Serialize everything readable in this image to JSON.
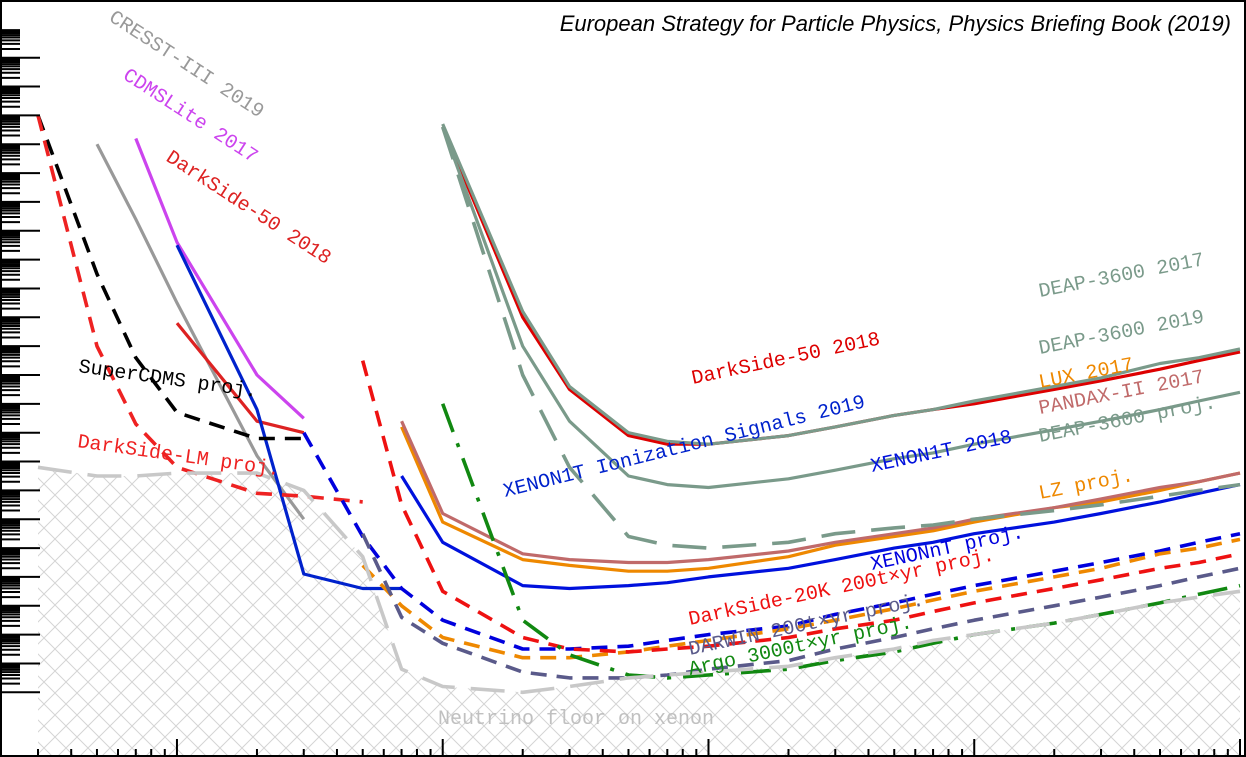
{
  "chart_data": {
    "type": "line",
    "title": "European Strategy for Particle Physics, Physics Briefing Book (2019)",
    "xlabel": "",
    "ylabel": "",
    "xscale": "log",
    "yscale": "log",
    "grid": false,
    "legend": "none (curves labelled inline)",
    "x": [
      0.3,
      0.5,
      0.7,
      1,
      2,
      3,
      5,
      7,
      10,
      20,
      30,
      50,
      70,
      100,
      200,
      300,
      500,
      700,
      1000,
      2000,
      3000,
      5000,
      7000,
      10000
    ],
    "shaded_region": {
      "name": "Neutrino floor on xenon",
      "color": "#c8c8c8",
      "pattern": "crosshatch"
    },
    "series": [
      {
        "name": "CRESST-III 2019",
        "color": "#999999",
        "style": "solid",
        "values": [
          null,
          41.0,
          38.4,
          35.5,
          30.2,
          28.0,
          null,
          null,
          null,
          null,
          null,
          null,
          null,
          null,
          null,
          null,
          null,
          null,
          null,
          null,
          null,
          null,
          null,
          null
        ]
      },
      {
        "name": "CDMSLite 2017",
        "color": "#cc44ee",
        "style": "solid",
        "values": [
          null,
          null,
          41.2,
          37.6,
          33.0,
          31.5,
          null,
          null,
          null,
          null,
          null,
          null,
          null,
          null,
          null,
          null,
          null,
          null,
          null,
          null,
          null,
          null,
          null,
          null
        ]
      },
      {
        "name": "DarkSide-50 2018",
        "color": "#dd2222",
        "style": "solid",
        "values": [
          null,
          null,
          null,
          34.8,
          31.4,
          31.0,
          null,
          null,
          null,
          null,
          null,
          null,
          null,
          null,
          null,
          null,
          null,
          null,
          null,
          null,
          null,
          null,
          null,
          null
        ]
      },
      {
        "name": "XENON1T Ionization Signals 2019",
        "color": "#0022cc",
        "style": "solid",
        "values": [
          null,
          null,
          null,
          37.5,
          31.8,
          26.1,
          25.6,
          25.6,
          null,
          null,
          null,
          null,
          null,
          null,
          null,
          null,
          null,
          null,
          null,
          null,
          null,
          null,
          null,
          null
        ]
      },
      {
        "name": "DarkSide-50 2018",
        "color": "#dd0000",
        "style": "solid",
        "values": [
          null,
          null,
          null,
          null,
          null,
          null,
          null,
          null,
          41.6,
          35.0,
          32.5,
          30.9,
          30.6,
          30.6,
          30.9,
          31.2,
          31.6,
          31.8,
          32.0,
          32.5,
          32.8,
          33.2,
          33.5,
          33.8
        ]
      },
      {
        "name": "DEAP-3600 2017",
        "color": "#7a9a8a",
        "style": "solid",
        "values": [
          null,
          null,
          null,
          null,
          null,
          null,
          null,
          null,
          41.7,
          35.2,
          32.6,
          31.0,
          30.7,
          30.6,
          30.9,
          31.2,
          31.6,
          31.8,
          32.1,
          32.6,
          32.9,
          33.4,
          33.6,
          33.9
        ]
      },
      {
        "name": "DEAP-3600 2019",
        "color": "#7a9a8a",
        "style": "solid",
        "values": [
          null,
          null,
          null,
          null,
          null,
          null,
          null,
          null,
          41.6,
          34.0,
          31.4,
          29.5,
          29.2,
          29.1,
          29.4,
          29.7,
          30.1,
          30.3,
          30.6,
          31.1,
          31.4,
          31.8,
          32.1,
          32.4
        ]
      },
      {
        "name": "LUX 2017",
        "color": "#ee8800",
        "style": "solid",
        "values": [
          null,
          null,
          null,
          null,
          null,
          null,
          null,
          31.2,
          27.9,
          26.6,
          26.4,
          26.2,
          26.2,
          26.3,
          26.7,
          27.1,
          27.4,
          27.6,
          27.9,
          28.4,
          28.6,
          29.0,
          29.3,
          29.6
        ]
      },
      {
        "name": "PANDAX-II 2017",
        "color": "#c06a6a",
        "style": "solid",
        "values": [
          null,
          null,
          null,
          null,
          null,
          null,
          null,
          31.4,
          28.2,
          26.8,
          26.6,
          26.5,
          26.5,
          26.6,
          26.9,
          27.2,
          27.5,
          27.7,
          28.0,
          28.4,
          28.7,
          29.1,
          29.3,
          29.6
        ]
      },
      {
        "name": "XENON1T 2018",
        "color": "#0011dd",
        "style": "solid",
        "values": [
          null,
          null,
          null,
          null,
          null,
          null,
          null,
          29.5,
          27.2,
          25.7,
          25.6,
          25.7,
          25.8,
          26.0,
          26.3,
          26.6,
          27.0,
          27.2,
          27.5,
          27.9,
          28.2,
          28.6,
          28.9,
          29.2
        ]
      },
      {
        "name": "DEAP-3600 proj.",
        "color": "#7a9a8a",
        "style": "longdash",
        "values": [
          null,
          null,
          null,
          null,
          null,
          null,
          null,
          null,
          41.6,
          33.0,
          29.8,
          27.4,
          27.1,
          27.0,
          27.2,
          27.5,
          27.7,
          27.8,
          28.0,
          28.3,
          28.5,
          28.8,
          29.0,
          29.2
        ]
      },
      {
        "name": "SuperCDMS proj.",
        "color": "#000000",
        "style": "dashed",
        "values": [
          42.0,
          36.5,
          33.6,
          31.7,
          30.8,
          30.8,
          null,
          null,
          null,
          null,
          null,
          null,
          null,
          null,
          null,
          null,
          null,
          null,
          null,
          null,
          null,
          null,
          null,
          null
        ]
      },
      {
        "name": "DarkSide-LM proj.",
        "color": "#ee2222",
        "style": "dashed",
        "values": [
          42.0,
          34.0,
          31.3,
          29.8,
          28.9,
          28.8,
          28.6,
          null,
          null,
          null,
          null,
          null,
          null,
          null,
          null,
          null,
          null,
          null,
          null,
          null,
          null,
          null,
          null,
          null
        ]
      },
      {
        "name": "XENONnT proj.",
        "color": "#0000dd",
        "style": "dashed",
        "values": [
          null,
          null,
          null,
          null,
          null,
          31.0,
          27.4,
          25.6,
          24.5,
          23.5,
          23.5,
          23.6,
          23.8,
          24.0,
          24.3,
          24.7,
          25.1,
          25.4,
          25.7,
          26.2,
          26.5,
          26.9,
          27.2,
          27.5
        ]
      },
      {
        "name": "LZ proj.",
        "color": "#ee8800",
        "style": "dashed",
        "values": [
          null,
          null,
          null,
          null,
          null,
          null,
          26.4,
          25.0,
          23.9,
          23.2,
          23.2,
          23.4,
          23.6,
          23.8,
          24.2,
          24.5,
          24.9,
          25.2,
          25.5,
          26.0,
          26.3,
          26.8,
          27.0,
          27.3
        ]
      },
      {
        "name": "DarkSide-20k 200t×yr proj.",
        "color": "#ee1111",
        "style": "dashed",
        "values": [
          null,
          null,
          null,
          null,
          null,
          null,
          33.5,
          28.5,
          25.5,
          23.9,
          23.5,
          23.4,
          23.5,
          23.6,
          23.9,
          24.2,
          24.5,
          24.8,
          25.1,
          25.6,
          25.9,
          26.3,
          26.5,
          26.8
        ]
      },
      {
        "name": "DARWIN 200t×yr proj.",
        "color": "#5a5a8a",
        "style": "dashed",
        "values": [
          null,
          null,
          null,
          null,
          null,
          null,
          27.5,
          24.6,
          23.7,
          22.7,
          22.5,
          22.5,
          22.6,
          22.8,
          23.1,
          23.5,
          23.9,
          24.2,
          24.5,
          25.0,
          25.3,
          25.7,
          26.0,
          26.3
        ]
      },
      {
        "name": "Argo 3000t×yr proj.",
        "color": "#118811",
        "style": "dashdot",
        "values": [
          null,
          null,
          null,
          null,
          null,
          null,
          null,
          null,
          32.0,
          24.5,
          23.3,
          22.6,
          22.5,
          22.6,
          22.8,
          23.1,
          23.4,
          23.7,
          24.0,
          24.4,
          24.7,
          25.1,
          25.4,
          25.7
        ]
      },
      {
        "name": "Neutrino floor on xenon",
        "color": "#c8c8c8",
        "style": "longdash",
        "values": [
          29.8,
          29.5,
          29.5,
          29.6,
          29.6,
          29.0,
          26.7,
          22.8,
          22.2,
          22.0,
          22.2,
          22.5,
          22.6,
          22.7,
          22.9,
          23.2,
          23.5,
          23.8,
          24.0,
          24.4,
          24.7,
          25.1,
          25.3,
          25.5
        ]
      }
    ],
    "labels": [
      {
        "text": "CRESST-III 2019",
        "color": "#999999"
      },
      {
        "text": "CDMSLite 2017",
        "color": "#cc44ee"
      },
      {
        "text": "DarkSide-50 2018",
        "color": "#dd2222"
      },
      {
        "text": "SuperCDMS proj.",
        "color": "#000000"
      },
      {
        "text": "DarkSide-LM proj.",
        "color": "#ee2222"
      },
      {
        "text": "XENON1T Ionization Signals 2019",
        "color": "#0022cc"
      },
      {
        "text": "DarkSide-50 2018",
        "color": "#dd0000"
      },
      {
        "text": "DEAP-3600 2017",
        "color": "#7a9a8a"
      },
      {
        "text": "DEAP-3600 2019",
        "color": "#7a9a8a"
      },
      {
        "text": "LUX 2017",
        "color": "#ee8800"
      },
      {
        "text": "PANDAX-II 2017",
        "color": "#c06a6a"
      },
      {
        "text": "DEAP-3600 proj.",
        "color": "#7a9a8a"
      },
      {
        "text": "XENON1T 2018",
        "color": "#0011dd"
      },
      {
        "text": "LZ proj.",
        "color": "#ee8800"
      },
      {
        "text": "XENONnT proj.",
        "color": "#0000dd"
      },
      {
        "text": "DarkSide-20K 200t×yr proj.",
        "color": "#ee1111"
      },
      {
        "text": "DARWIN 200t×yr proj.",
        "color": "#5a5a8a"
      },
      {
        "text": "Argo 3000t×yr proj.",
        "color": "#118811"
      },
      {
        "text": "Neutrino floor on xenon",
        "color": "#c0c0c0"
      }
    ]
  }
}
